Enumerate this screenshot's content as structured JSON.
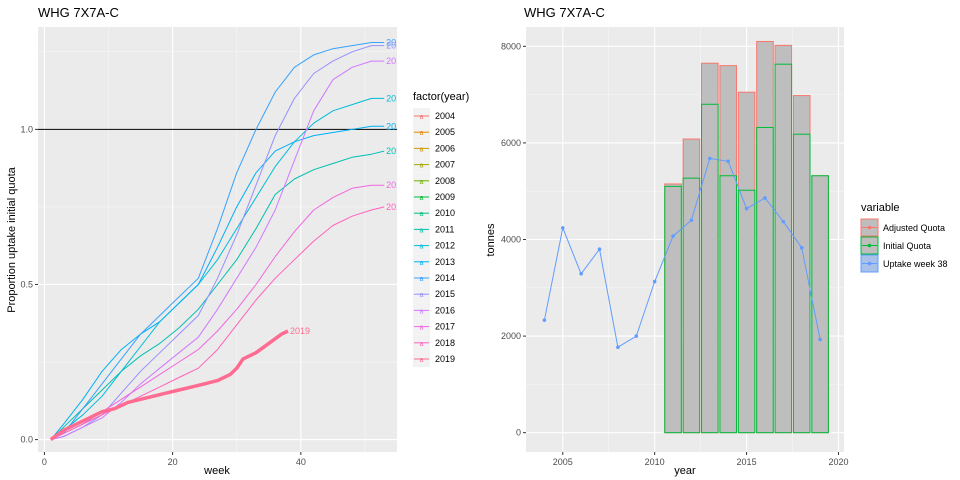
{
  "chart_data": [
    {
      "type": "line",
      "title": "WHG 7X7A-C",
      "xlabel": "week",
      "ylabel": "Proportion uptake initial quota",
      "xlim": [
        -1,
        55
      ],
      "ylim": [
        -0.04,
        1.33
      ],
      "x_ticks": [
        0,
        20,
        40
      ],
      "y_ticks": [
        0.0,
        0.5,
        1.0
      ],
      "y_tick_labels": [
        "0.0",
        "0.5",
        "1.0"
      ],
      "hline": 1.0,
      "legend_title": "factor(year)",
      "legend_position": "right",
      "grid": true,
      "series": [
        {
          "name": "2004",
          "color": "#F8766D",
          "points": []
        },
        {
          "name": "2005",
          "color": "#E58700",
          "points": []
        },
        {
          "name": "2006",
          "color": "#C99800",
          "points": []
        },
        {
          "name": "2007",
          "color": "#A3A500",
          "points": []
        },
        {
          "name": "2008",
          "color": "#6BB100",
          "points": []
        },
        {
          "name": "2009",
          "color": "#00BA38",
          "points": []
        },
        {
          "name": "2010",
          "color": "#00BF7D",
          "points": []
        },
        {
          "name": "2011",
          "color": "#00C0AF",
          "end_label": "2011",
          "points": [
            [
              1,
              0
            ],
            [
              3,
              0.04
            ],
            [
              6,
              0.1
            ],
            [
              9,
              0.16
            ],
            [
              12,
              0.22
            ],
            [
              15,
              0.27
            ],
            [
              18,
              0.31
            ],
            [
              21,
              0.36
            ],
            [
              24,
              0.42
            ],
            [
              27,
              0.5
            ],
            [
              30,
              0.58
            ],
            [
              33,
              0.68
            ],
            [
              36,
              0.79
            ],
            [
              39,
              0.84
            ],
            [
              42,
              0.87
            ],
            [
              45,
              0.89
            ],
            [
              48,
              0.91
            ],
            [
              51,
              0.92
            ],
            [
              53,
              0.93
            ]
          ]
        },
        {
          "name": "2012",
          "color": "#00BCD8",
          "end_label": "2012",
          "points": [
            [
              1,
              0
            ],
            [
              3,
              0.03
            ],
            [
              6,
              0.08
            ],
            [
              9,
              0.14
            ],
            [
              12,
              0.22
            ],
            [
              15,
              0.3
            ],
            [
              18,
              0.38
            ],
            [
              21,
              0.44
            ],
            [
              24,
              0.5
            ],
            [
              27,
              0.58
            ],
            [
              30,
              0.68
            ],
            [
              33,
              0.78
            ],
            [
              36,
              0.88
            ],
            [
              39,
              0.96
            ],
            [
              42,
              1.02
            ],
            [
              45,
              1.06
            ],
            [
              48,
              1.08
            ],
            [
              51,
              1.1
            ],
            [
              53,
              1.1
            ]
          ]
        },
        {
          "name": "2013",
          "color": "#00B0F6",
          "end_label": "2013",
          "points": [
            [
              1,
              0
            ],
            [
              3,
              0.05
            ],
            [
              6,
              0.13
            ],
            [
              9,
              0.22
            ],
            [
              12,
              0.29
            ],
            [
              15,
              0.34
            ],
            [
              18,
              0.38
            ],
            [
              21,
              0.44
            ],
            [
              24,
              0.5
            ],
            [
              27,
              0.62
            ],
            [
              30,
              0.75
            ],
            [
              33,
              0.86
            ],
            [
              36,
              0.93
            ],
            [
              39,
              0.96
            ],
            [
              42,
              0.98
            ],
            [
              45,
              0.99
            ],
            [
              48,
              1.0
            ],
            [
              51,
              1.01
            ],
            [
              53,
              1.01
            ]
          ]
        },
        {
          "name": "2014",
          "color": "#35A2FF",
          "end_label": "2014",
          "points": [
            [
              1,
              0
            ],
            [
              3,
              0.02
            ],
            [
              6,
              0.1
            ],
            [
              9,
              0.18
            ],
            [
              12,
              0.26
            ],
            [
              15,
              0.34
            ],
            [
              18,
              0.4
            ],
            [
              21,
              0.46
            ],
            [
              24,
              0.52
            ],
            [
              27,
              0.68
            ],
            [
              30,
              0.86
            ],
            [
              33,
              1.0
            ],
            [
              36,
              1.12
            ],
            [
              39,
              1.2
            ],
            [
              42,
              1.24
            ],
            [
              45,
              1.26
            ],
            [
              48,
              1.27
            ],
            [
              51,
              1.28
            ],
            [
              53,
              1.28
            ]
          ]
        },
        {
          "name": "2015",
          "color": "#9590FF",
          "end_label": "2015",
          "points": [
            [
              1,
              0
            ],
            [
              3,
              0.01
            ],
            [
              6,
              0.04
            ],
            [
              9,
              0.08
            ],
            [
              12,
              0.15
            ],
            [
              15,
              0.22
            ],
            [
              18,
              0.28
            ],
            [
              21,
              0.34
            ],
            [
              24,
              0.4
            ],
            [
              27,
              0.52
            ],
            [
              30,
              0.66
            ],
            [
              33,
              0.82
            ],
            [
              36,
              0.98
            ],
            [
              39,
              1.1
            ],
            [
              42,
              1.18
            ],
            [
              45,
              1.22
            ],
            [
              48,
              1.25
            ],
            [
              51,
              1.27
            ],
            [
              53,
              1.27
            ]
          ]
        },
        {
          "name": "2016",
          "color": "#D078FF",
          "end_label": "2016",
          "points": [
            [
              1,
              0
            ],
            [
              3,
              0.01
            ],
            [
              6,
              0.04
            ],
            [
              9,
              0.07
            ],
            [
              12,
              0.12
            ],
            [
              15,
              0.18
            ],
            [
              18,
              0.23
            ],
            [
              21,
              0.28
            ],
            [
              24,
              0.33
            ],
            [
              27,
              0.42
            ],
            [
              30,
              0.52
            ],
            [
              33,
              0.62
            ],
            [
              36,
              0.74
            ],
            [
              39,
              0.9
            ],
            [
              42,
              1.06
            ],
            [
              45,
              1.16
            ],
            [
              48,
              1.2
            ],
            [
              51,
              1.22
            ],
            [
              53,
              1.22
            ]
          ]
        },
        {
          "name": "2017",
          "color": "#F066E0",
          "end_label": "2017",
          "points": [
            [
              1,
              0
            ],
            [
              3,
              0.02
            ],
            [
              6,
              0.05
            ],
            [
              9,
              0.09
            ],
            [
              12,
              0.13
            ],
            [
              15,
              0.17
            ],
            [
              18,
              0.21
            ],
            [
              21,
              0.25
            ],
            [
              24,
              0.29
            ],
            [
              27,
              0.35
            ],
            [
              30,
              0.42
            ],
            [
              33,
              0.5
            ],
            [
              36,
              0.59
            ],
            [
              39,
              0.67
            ],
            [
              42,
              0.74
            ],
            [
              45,
              0.78
            ],
            [
              48,
              0.81
            ],
            [
              51,
              0.82
            ],
            [
              53,
              0.82
            ]
          ]
        },
        {
          "name": "2018",
          "color": "#FF62BC",
          "end_label": "2018",
          "points": [
            [
              1,
              0
            ],
            [
              3,
              0.02
            ],
            [
              6,
              0.05
            ],
            [
              9,
              0.08
            ],
            [
              12,
              0.11
            ],
            [
              15,
              0.14
            ],
            [
              18,
              0.17
            ],
            [
              21,
              0.2
            ],
            [
              24,
              0.23
            ],
            [
              27,
              0.29
            ],
            [
              30,
              0.37
            ],
            [
              33,
              0.45
            ],
            [
              36,
              0.52
            ],
            [
              39,
              0.58
            ],
            [
              42,
              0.64
            ],
            [
              45,
              0.69
            ],
            [
              48,
              0.72
            ],
            [
              51,
              0.74
            ],
            [
              53,
              0.75
            ]
          ]
        },
        {
          "name": "2019",
          "color": "#FF6C91",
          "bold": true,
          "end_label": "2019",
          "points": [
            [
              1,
              0
            ],
            [
              3,
              0.03
            ],
            [
              5,
              0.05
            ],
            [
              7,
              0.07
            ],
            [
              9,
              0.09
            ],
            [
              11,
              0.1
            ],
            [
              13,
              0.12
            ],
            [
              15,
              0.13
            ],
            [
              17,
              0.14
            ],
            [
              19,
              0.15
            ],
            [
              21,
              0.16
            ],
            [
              23,
              0.17
            ],
            [
              25,
              0.18
            ],
            [
              27,
              0.19
            ],
            [
              29,
              0.21
            ],
            [
              30,
              0.23
            ],
            [
              31,
              0.26
            ],
            [
              33,
              0.28
            ],
            [
              35,
              0.31
            ],
            [
              37,
              0.34
            ],
            [
              38,
              0.35
            ]
          ]
        }
      ]
    },
    {
      "type": "bar",
      "title": "WHG 7X7A-C",
      "xlabel": "year",
      "ylabel": "tonnes",
      "xlim": [
        2003,
        2020.3
      ],
      "ylim": [
        -400,
        8400
      ],
      "x_ticks": [
        2005,
        2010,
        2015,
        2020
      ],
      "y_ticks": [
        0,
        2000,
        4000,
        6000,
        8000
      ],
      "legend_title": "variable",
      "legend_position": "right",
      "grid": true,
      "colors": {
        "adjusted": "#F8766D",
        "initial": "#00BA38",
        "uptake": "#619CFF",
        "bar_fill": "#BEBEBE"
      },
      "legend": [
        "Adjusted Quota",
        "Initial Quota",
        "Uptake week 38"
      ],
      "years": [
        2011,
        2012,
        2013,
        2014,
        2015,
        2016,
        2017,
        2018,
        2019
      ],
      "adjusted_quota": [
        5150,
        6080,
        7650,
        7600,
        7050,
        8100,
        8020,
        6980,
        5320
      ],
      "initial_quota": [
        5100,
        5270,
        6800,
        5320,
        5020,
        6320,
        7630,
        6180,
        5320
      ],
      "uptake_years": [
        2004,
        2005,
        2006,
        2007,
        2008,
        2009,
        2010,
        2011,
        2012,
        2013,
        2014,
        2015,
        2016,
        2017,
        2018,
        2019
      ],
      "uptake_week_38": [
        2330,
        4240,
        3290,
        3800,
        1770,
        2000,
        3130,
        4070,
        4400,
        5680,
        5620,
        4640,
        4860,
        4370,
        3830,
        1930
      ]
    }
  ]
}
